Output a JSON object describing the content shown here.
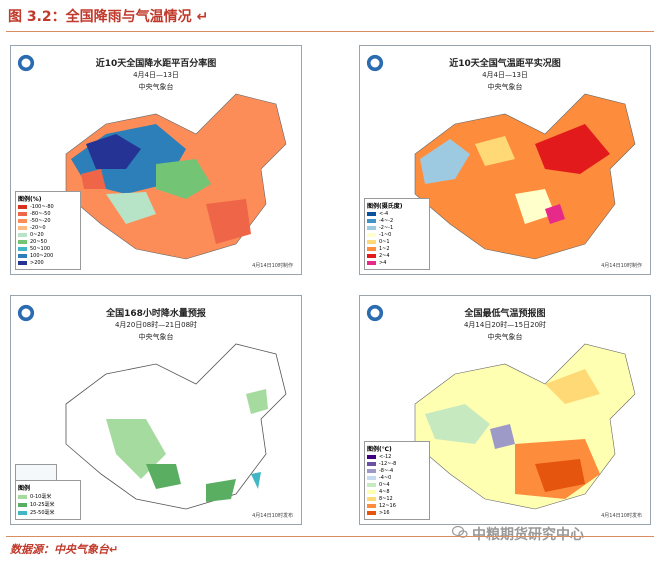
{
  "header": {
    "title": "图 3.2：全国降雨与气温情况 ↵"
  },
  "panels": [
    {
      "title": "近10天全国降水距平百分率图",
      "subtitle": "4月4日—13日",
      "org": "中央气象台",
      "legend_title": "图例(%)",
      "stamp": "4月14日10时制作",
      "legend": [
        "-100~-80",
        "-80~-50",
        "-50~-20",
        "-20~0",
        "0~20",
        "20~50",
        "50~100",
        "100~200",
        ">200"
      ],
      "colors": [
        "#d7301f",
        "#ef6548",
        "#fc8d59",
        "#fdbb84",
        "#b7e4c7",
        "#74c476",
        "#41b6c4",
        "#2c7fb8",
        "#253494"
      ]
    },
    {
      "title": "近10天全国气温距平实况图",
      "subtitle": "4月4日—13日",
      "org": "中央气象台",
      "legend_title": "图例(摄氏度)",
      "stamp": "4月14日10时制作",
      "legend": [
        "<-4",
        "-4~-2",
        "-2~-1",
        "-1~0",
        "0~1",
        "1~2",
        "2~4",
        ">4"
      ],
      "colors": [
        "#08519c",
        "#4292c6",
        "#9ecae1",
        "#ffffcc",
        "#fed976",
        "#fd8d3c",
        "#e31a1c",
        "#e7298a"
      ]
    },
    {
      "title": "全国168小时降水量预报",
      "subtitle": "4月20日08时—21日08时",
      "org": "中央气象台",
      "legend_title": "图例",
      "stamp": "4月14日10时发布",
      "legend": [
        "0-10毫米",
        "10-25毫米",
        "25-50毫米"
      ],
      "colors": [
        "#a6dba0",
        "#5aae61",
        "#41b6c4"
      ]
    },
    {
      "title": "全国最低气温预报图",
      "subtitle": "4月14日20时—15日20时",
      "org": "中央气象台",
      "legend_title": "图例(℃)",
      "stamp": "4月14日10时发布",
      "legend": [
        "<-12",
        "-12~-8",
        "-8~-4",
        "-4~0",
        "0~4",
        "4~8",
        "8~12",
        "12~16",
        ">16"
      ],
      "colors": [
        "#3f007d",
        "#6a51a3",
        "#9e9ac8",
        "#c6dbef",
        "#c7e9c0",
        "#ffffb2",
        "#fed976",
        "#fd8d3c",
        "#e6550d"
      ]
    }
  ],
  "footer": {
    "source": "数据源：中央气象台↵",
    "watermark": "中粮期货研究中心"
  }
}
